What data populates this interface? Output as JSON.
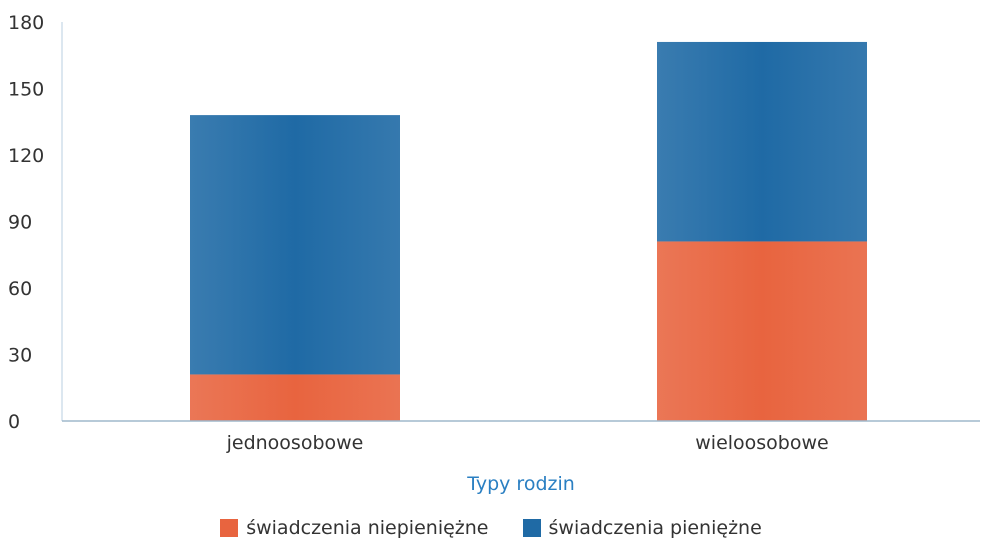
{
  "chart_data": {
    "type": "bar",
    "stacked": true,
    "categories": [
      "jednoosobowe",
      "wieloosobowe"
    ],
    "series": [
      {
        "name": "świadczenia niepieniężne",
        "values": [
          21,
          81
        ],
        "color": "#e8643f"
      },
      {
        "name": "świadczenia pieniężne",
        "values": [
          117,
          90
        ],
        "color": "#1f6aa5"
      }
    ],
    "xlabel": "Typy rodzin",
    "ylabel": "",
    "ylim": [
      0,
      180
    ],
    "yticks": [
      0,
      30,
      60,
      90,
      120,
      150,
      180
    ],
    "grid": false,
    "legend_position": "bottom",
    "xlabel_color": "#2a7fc2"
  }
}
